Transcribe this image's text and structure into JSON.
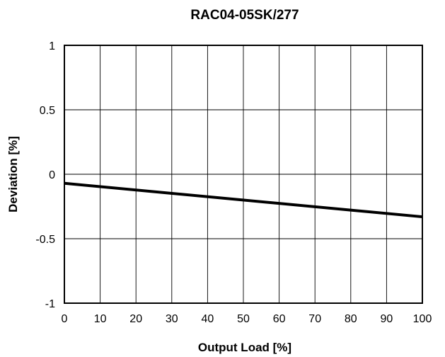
{
  "chart_data": {
    "type": "line",
    "title": "RAC04-05SK/277",
    "xlabel": "Output Load [%]",
    "ylabel": "Deviation [%]",
    "xlim": [
      0,
      100
    ],
    "ylim": [
      -1,
      1
    ],
    "x_ticks": [
      0,
      10,
      20,
      30,
      40,
      50,
      60,
      70,
      80,
      90,
      100
    ],
    "x_tick_labels": [
      "0",
      "10",
      "20",
      "30",
      "40",
      "50",
      "60",
      "70",
      "80",
      "90",
      "100"
    ],
    "y_ticks": [
      1,
      0.5,
      0,
      -0.5,
      -1
    ],
    "y_tick_labels": [
      "1",
      "0.5",
      "0",
      "-0.5",
      "-1"
    ],
    "grid": true,
    "series": [
      {
        "x": [
          0,
          100
        ],
        "y": [
          -0.07,
          -0.33
        ]
      }
    ],
    "colors": {
      "line": "#000000",
      "grid": "#000000",
      "background": "#ffffff"
    }
  }
}
